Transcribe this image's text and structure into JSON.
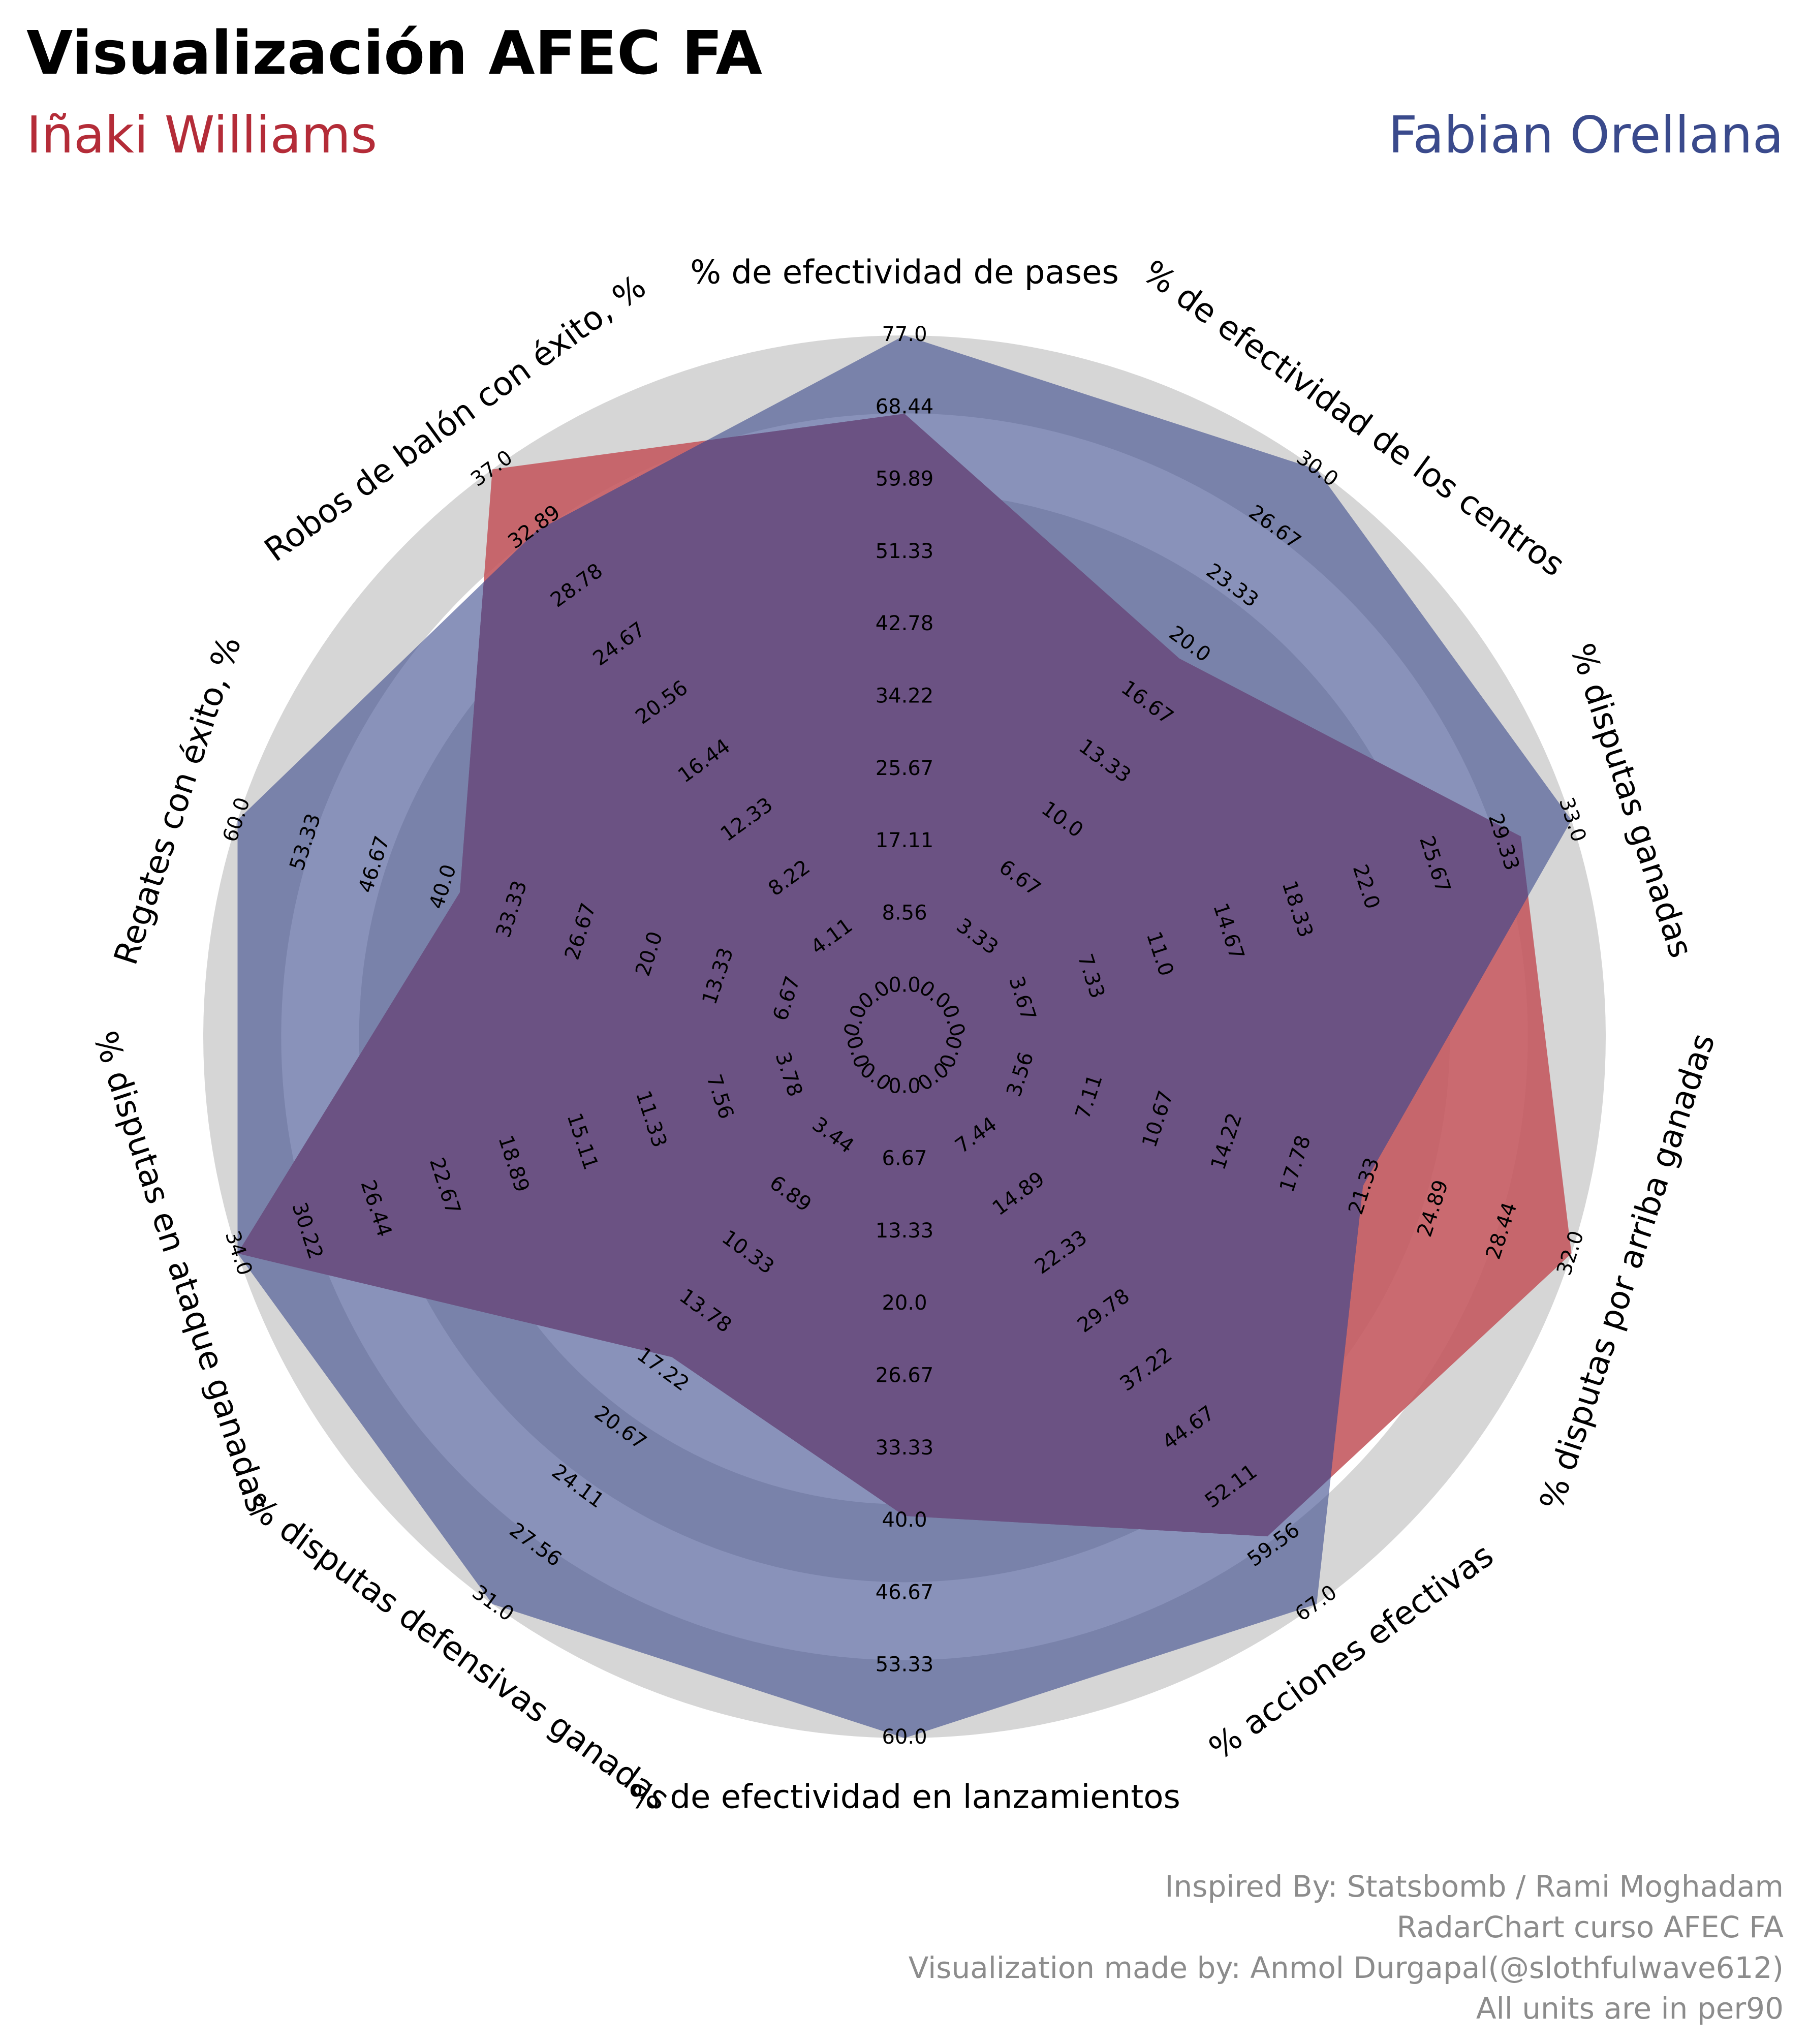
{
  "title": "Visualización AFEC FA",
  "credits": [
    "Inspired By: Statsbomb / Rami Moghadam",
    "RadarChart curso AFEC FA",
    "Visualization made by: Anmol Durgapal(@slothfulwave612)",
    "All units are in per90"
  ],
  "colors": {
    "background": "#ffffff",
    "ring_light": "#d6d6d6",
    "player1": "#b42c38",
    "player2": "#3a4a8c",
    "player1_fill": "#c45a60",
    "player2_fill": "#7b8abf",
    "overlap_fill": "#6b5283"
  },
  "chart_data": {
    "type": "radar",
    "title": "Visualización AFEC FA",
    "ring_count": 9,
    "params": [
      "% de efectividad de pases",
      "% de efectividad de los centros",
      "% disputas ganadas",
      "% disputas por arriba ganadas",
      "% acciones efectivas",
      "% de efectividad en lanzamientos",
      "% disputas defensivas ganadas",
      "% disputas en ataque ganadas",
      "Regates con éxito, %",
      "Robos de balón con éxito, %"
    ],
    "ranges": [
      [
        0,
        77
      ],
      [
        0,
        30
      ],
      [
        0,
        33
      ],
      [
        0,
        32
      ],
      [
        0,
        67
      ],
      [
        0,
        60
      ],
      [
        0,
        31
      ],
      [
        0,
        34
      ],
      [
        0,
        60
      ],
      [
        0,
        37
      ]
    ],
    "tick_labels": [
      [
        "0.0",
        "8.56",
        "17.11",
        "25.67",
        "34.22",
        "42.78",
        "51.33",
        "59.89",
        "68.44",
        "77.0"
      ],
      [
        "0.0",
        "3.33",
        "6.67",
        "10.0",
        "13.33",
        "16.67",
        "20.0",
        "23.33",
        "26.67",
        "30.0"
      ],
      [
        "0.0",
        "3.67",
        "7.33",
        "11.0",
        "14.67",
        "18.33",
        "22.0",
        "25.67",
        "29.33",
        "33.0"
      ],
      [
        "0.0",
        "3.56",
        "7.11",
        "10.67",
        "14.22",
        "17.78",
        "21.33",
        "24.89",
        "28.44",
        "32.0"
      ],
      [
        "0.0",
        "7.44",
        "14.89",
        "22.33",
        "29.78",
        "37.22",
        "44.67",
        "52.11",
        "59.56",
        "67.0"
      ],
      [
        "0.0",
        "6.67",
        "13.33",
        "20.0",
        "26.67",
        "33.33",
        "40.0",
        "46.67",
        "53.33",
        "60.0"
      ],
      [
        "0.0",
        "3.44",
        "6.89",
        "10.33",
        "13.78",
        "17.22",
        "20.67",
        "24.11",
        "27.56",
        "31.0"
      ],
      [
        "0.0",
        "3.78",
        "7.56",
        "11.33",
        "15.11",
        "18.89",
        "22.67",
        "26.44",
        "30.22",
        "34.0"
      ],
      [
        "0.0",
        "6.67",
        "13.33",
        "20.0",
        "26.67",
        "33.33",
        "40.0",
        "46.67",
        "53.33",
        "60.0"
      ],
      [
        "0.0",
        "4.11",
        "8.22",
        "12.33",
        "16.44",
        "20.56",
        "24.67",
        "28.78",
        "32.89",
        "37.0"
      ]
    ],
    "series": [
      {
        "name": "Iñaki Williams",
        "values": [
          68.4,
          20.0,
          30.5,
          32.0,
          59.0,
          41.0,
          17.5,
          34.0,
          40.0,
          37.0
        ]
      },
      {
        "name": "Fabian Orellana",
        "values": [
          77.0,
          30.0,
          33.0,
          22.0,
          67.0,
          60.0,
          31.0,
          34.0,
          60.0,
          33.0
        ]
      }
    ]
  }
}
